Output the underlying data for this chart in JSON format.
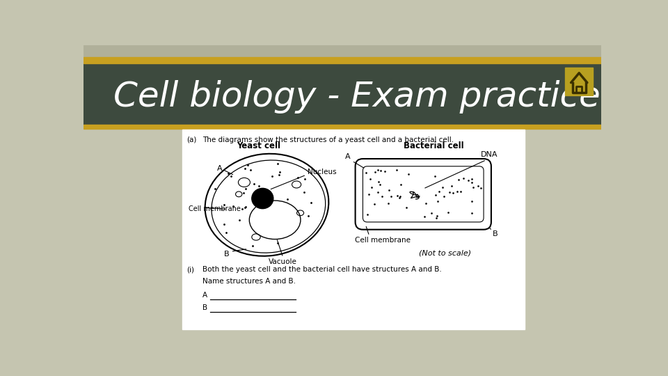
{
  "title": "Cell biology - Exam practice",
  "title_color": "#FFFFFF",
  "header_bg_color": "#3d4a3e",
  "header_stripe_color": "#c8a020",
  "bg_color": "#c5c5b0",
  "card_bg_color": "#FFFFFF",
  "home_icon_color": "#b8a020",
  "question_a_label": "(a)",
  "question_a_text": "The diagrams show the structures of a yeast cell and a bacterial cell.",
  "yeast_cell_label": "Yeast cell",
  "bacterial_cell_label": "Bacterial cell",
  "nucleus_label": "Nucleus",
  "dna_label": "DNA",
  "cell_membrane_label_yeast": "Cell membrane",
  "vacuole_label": "Vacuole",
  "cell_membrane_label_bact": "Cell membrane",
  "not_to_scale": "(Not to scale)",
  "label_A_yeast": "A",
  "label_B_yeast": "B",
  "label_A_bact": "A",
  "label_B_bact": "B",
  "question_i_label": "(i)",
  "question_i_text": "Both the yeast cell and the bacterial cell have structures A and B.",
  "name_structures_text": "Name structures A and B.",
  "line_A_label": "A",
  "line_B_label": "B"
}
